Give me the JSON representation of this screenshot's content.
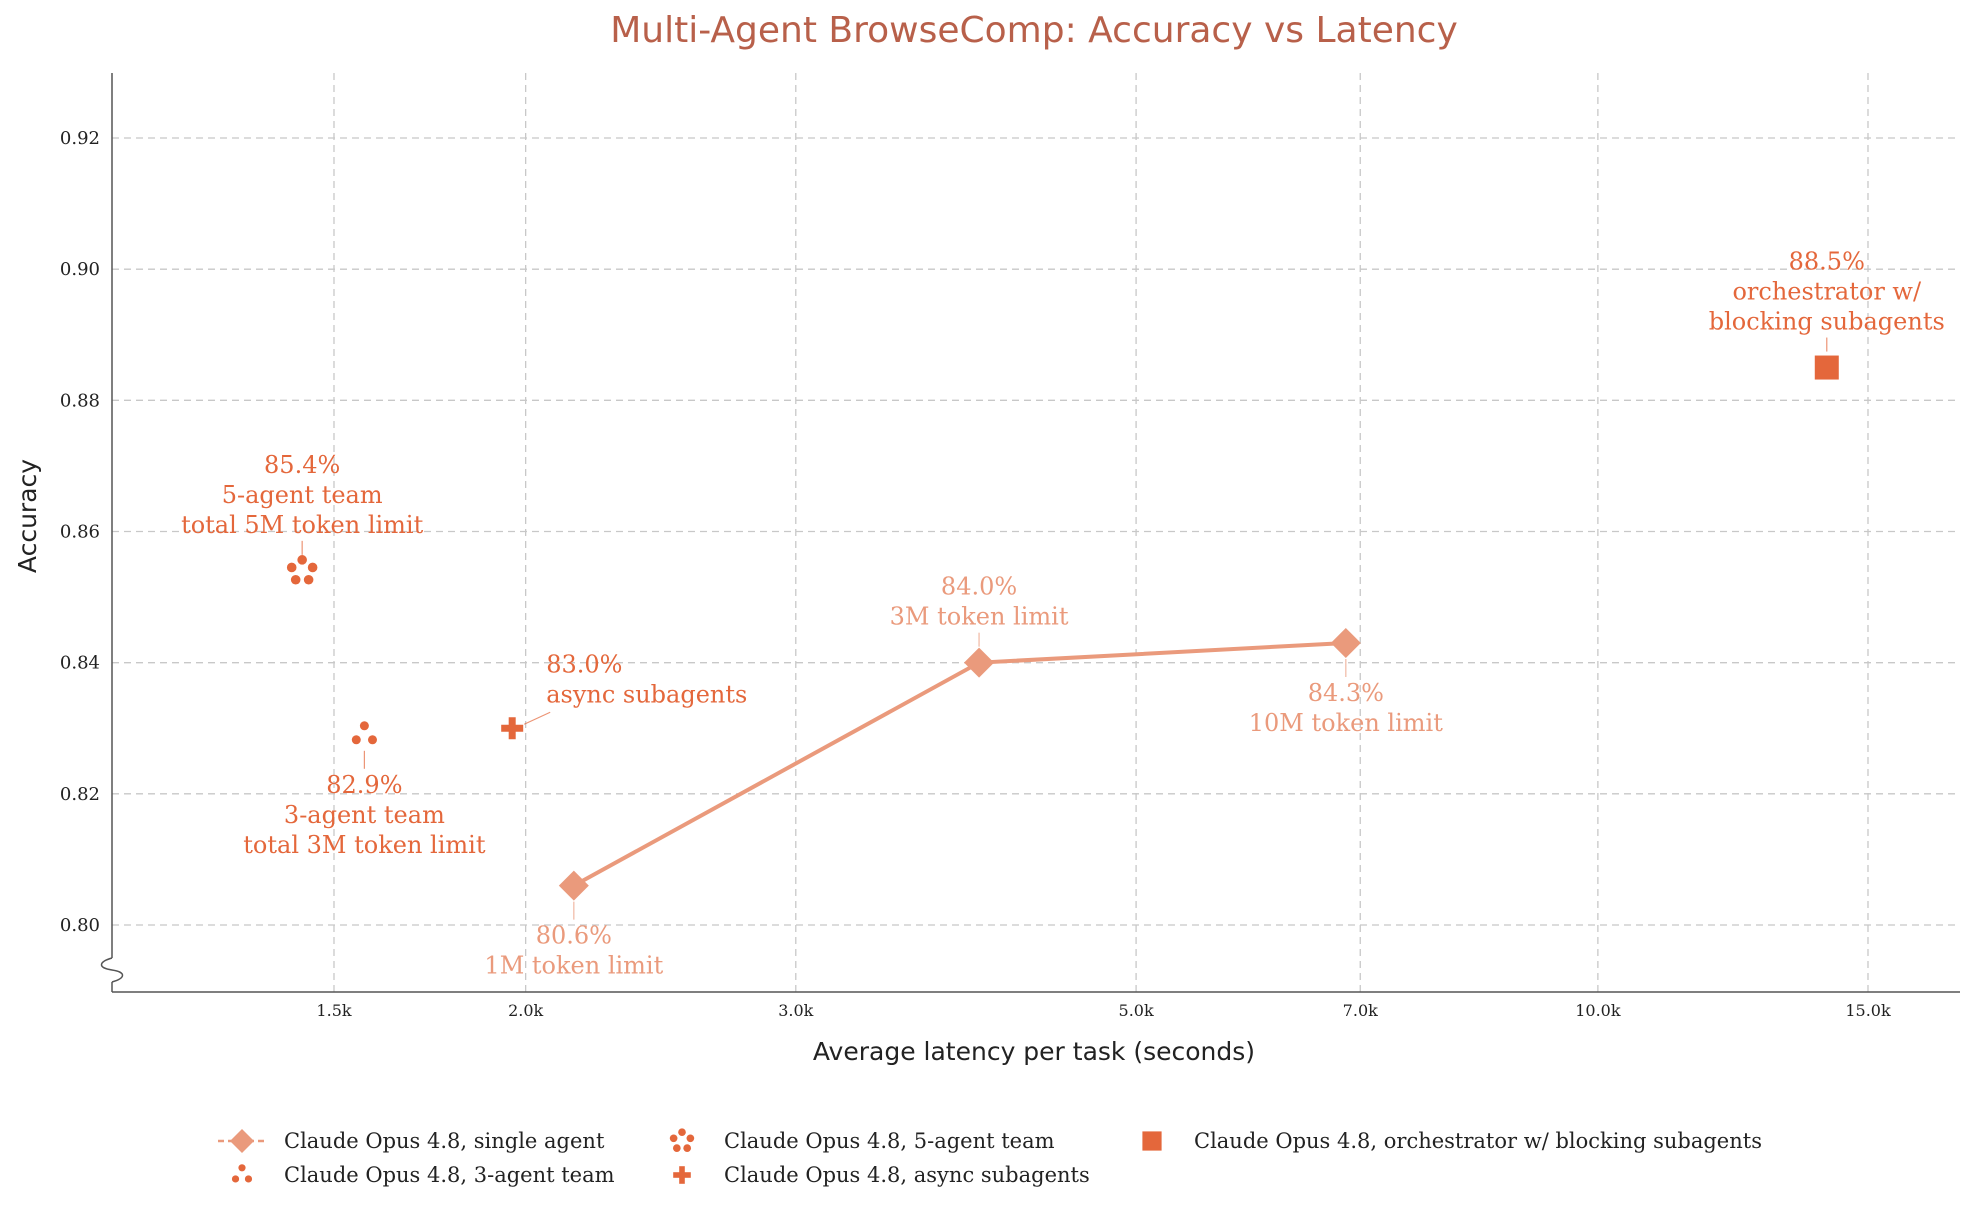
{
  "chart_data": {
    "type": "scatter",
    "title": "Multi-Agent BrowseComp: Accuracy vs Latency",
    "xlabel": "Average latency per task (seconds)",
    "ylabel": "Accuracy",
    "x_scale": "log",
    "xlim": [
      1100,
      18500
    ],
    "ylim": [
      0.79,
      0.93
    ],
    "grid": true,
    "legend_position": "bottom",
    "x_ticks": [
      {
        "value": 1500,
        "label": "1.5k"
      },
      {
        "value": 2000,
        "label": "2.0k"
      },
      {
        "value": 3000,
        "label": "3.0k"
      },
      {
        "value": 5000,
        "label": "5.0k"
      },
      {
        "value": 7000,
        "label": "7.0k"
      },
      {
        "value": 10000,
        "label": "10.0k"
      },
      {
        "value": 15000,
        "label": "15.0k"
      }
    ],
    "y_ticks": [
      {
        "value": 0.8,
        "label": "0.80"
      },
      {
        "value": 0.82,
        "label": "0.82"
      },
      {
        "value": 0.84,
        "label": "0.84"
      },
      {
        "value": 0.86,
        "label": "0.86"
      },
      {
        "value": 0.88,
        "label": "0.88"
      },
      {
        "value": 0.9,
        "label": "0.90"
      },
      {
        "value": 0.92,
        "label": "0.92"
      }
    ],
    "series": [
      {
        "name": "Claude Opus 4.8, single agent",
        "marker": "diamond",
        "color": "#ea9a7c",
        "line": true,
        "points": [
          {
            "x": 2150,
            "y": 0.806,
            "label_lines": [
              "80.6%",
              "1M token limit"
            ],
            "label_pos": "below"
          },
          {
            "x": 3950,
            "y": 0.84,
            "label_lines": [
              "84.0%",
              "3M token limit"
            ],
            "label_pos": "above"
          },
          {
            "x": 6850,
            "y": 0.843,
            "label_lines": [
              "84.3%",
              "10M token limit"
            ],
            "label_pos": "below"
          }
        ]
      },
      {
        "name": "Claude Opus 4.8, 3-agent team",
        "marker": "three-dots",
        "color": "#e4673b",
        "line": false,
        "points": [
          {
            "x": 1570,
            "y": 0.829,
            "label_lines": [
              "82.9%",
              "3-agent team",
              "total 3M token limit"
            ],
            "label_pos": "below"
          }
        ]
      },
      {
        "name": "Claude Opus 4.8, 5-agent team",
        "marker": "five-dots",
        "color": "#e4673b",
        "line": false,
        "points": [
          {
            "x": 1430,
            "y": 0.854,
            "label_lines": [
              "85.4%",
              "5-agent team",
              "total 5M token limit"
            ],
            "label_pos": "above"
          }
        ]
      },
      {
        "name": "Claude Opus 4.8, async subagents",
        "marker": "plus",
        "color": "#e4673b",
        "line": false,
        "points": [
          {
            "x": 1960,
            "y": 0.83,
            "label_lines": [
              "83.0%",
              "async subagents"
            ],
            "label_pos": "above-right"
          }
        ]
      },
      {
        "name": "Claude Opus 4.8, orchestrator w/ blocking subagents",
        "marker": "square",
        "color": "#e4673b",
        "line": false,
        "points": [
          {
            "x": 14100,
            "y": 0.885,
            "label_lines": [
              "88.5%",
              "orchestrator w/",
              "blocking subagents"
            ],
            "label_pos": "above"
          }
        ]
      }
    ]
  }
}
